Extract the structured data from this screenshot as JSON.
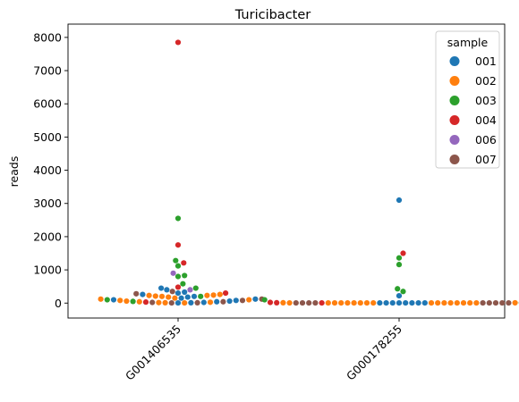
{
  "chart_data": {
    "type": "scatter",
    "subtype": "swarm",
    "title": "Turicibacter",
    "xlabel": "",
    "ylabel": "reads",
    "ylim": [
      -450,
      8400
    ],
    "yticks": [
      0,
      1000,
      2000,
      3000,
      4000,
      5000,
      6000,
      7000,
      8000
    ],
    "categories": [
      "G001406535",
      "G000178255"
    ],
    "legend": {
      "title": "sample",
      "placement": "top-right",
      "entries": [
        {
          "name": "001",
          "color": "#1f77b4"
        },
        {
          "name": "002",
          "color": "#ff7f0e"
        },
        {
          "name": "003",
          "color": "#2ca02c"
        },
        {
          "name": "004",
          "color": "#d62728"
        },
        {
          "name": "006",
          "color": "#9467bd"
        },
        {
          "name": "007",
          "color": "#8c564b"
        }
      ]
    },
    "series": [
      {
        "name": "001",
        "color": "#1f77b4",
        "values": [
          [
            0,
            450
          ],
          [
            0,
            400
          ],
          [
            0,
            330
          ],
          [
            0,
            300
          ],
          [
            0,
            260
          ],
          [
            0,
            200
          ],
          [
            0,
            180
          ],
          [
            0,
            150
          ],
          [
            0,
            120
          ],
          [
            0,
            100
          ],
          [
            0,
            80
          ],
          [
            0,
            60
          ],
          [
            0,
            40
          ],
          [
            0,
            20
          ],
          [
            0,
            10
          ],
          [
            0,
            5
          ],
          [
            1,
            3100
          ],
          [
            1,
            220
          ],
          [
            1,
            5
          ],
          [
            1,
            5
          ],
          [
            1,
            5
          ],
          [
            1,
            5
          ],
          [
            1,
            5
          ],
          [
            1,
            5
          ],
          [
            1,
            5
          ],
          [
            1,
            5
          ]
        ]
      },
      {
        "name": "002",
        "color": "#ff7f0e",
        "values": [
          [
            0,
            260
          ],
          [
            0,
            230
          ],
          [
            0,
            210
          ],
          [
            0,
            200
          ],
          [
            0,
            180
          ],
          [
            0,
            150
          ],
          [
            0,
            120
          ],
          [
            0,
            100
          ],
          [
            0,
            80
          ],
          [
            0,
            60
          ],
          [
            0,
            40
          ],
          [
            0,
            25
          ],
          [
            0,
            15
          ],
          [
            0,
            10
          ],
          [
            0,
            5
          ],
          [
            0,
            240
          ],
          [
            0,
            230
          ],
          [
            1,
            10
          ],
          [
            1,
            8
          ],
          [
            1,
            6
          ],
          [
            1,
            5
          ],
          [
            1,
            5
          ],
          [
            1,
            5
          ],
          [
            1,
            5
          ],
          [
            1,
            5
          ],
          [
            1,
            5
          ],
          [
            1,
            5
          ],
          [
            1,
            5
          ],
          [
            1,
            5
          ],
          [
            1,
            5
          ],
          [
            1,
            5
          ],
          [
            1,
            5
          ],
          [
            1,
            5
          ],
          [
            1,
            5
          ],
          [
            1,
            5
          ],
          [
            1,
            5
          ]
        ]
      },
      {
        "name": "003",
        "color": "#2ca02c",
        "values": [
          [
            0,
            2550
          ],
          [
            0,
            1280
          ],
          [
            0,
            1120
          ],
          [
            0,
            830
          ],
          [
            0,
            800
          ],
          [
            0,
            580
          ],
          [
            0,
            450
          ],
          [
            0,
            200
          ],
          [
            0,
            100
          ],
          [
            0,
            50
          ],
          [
            1,
            1360
          ],
          [
            1,
            1160
          ],
          [
            1,
            430
          ],
          [
            1,
            350
          ],
          [
            1,
            100
          ],
          [
            1,
            60
          ],
          [
            1,
            20
          ],
          [
            1,
            10
          ]
        ]
      },
      {
        "name": "004",
        "color": "#d62728",
        "values": [
          [
            0,
            7850
          ],
          [
            0,
            1750
          ],
          [
            0,
            1210
          ],
          [
            0,
            480
          ],
          [
            0,
            300
          ],
          [
            0,
            30
          ],
          [
            1,
            1500
          ],
          [
            1,
            20
          ],
          [
            1,
            10
          ],
          [
            1,
            5
          ]
        ]
      },
      {
        "name": "006",
        "color": "#9467bd",
        "values": [
          [
            0,
            900
          ],
          [
            0,
            400
          ]
        ]
      },
      {
        "name": "007",
        "color": "#8c564b",
        "values": [
          [
            0,
            350
          ],
          [
            0,
            280
          ],
          [
            0,
            120
          ],
          [
            0,
            80
          ],
          [
            0,
            40
          ],
          [
            0,
            20
          ],
          [
            0,
            10
          ],
          [
            0,
            5
          ],
          [
            1,
            5
          ],
          [
            1,
            5
          ],
          [
            1,
            5
          ],
          [
            1,
            5
          ],
          [
            1,
            5
          ],
          [
            1,
            5
          ],
          [
            1,
            5
          ],
          [
            1,
            5
          ],
          [
            1,
            5
          ]
        ]
      }
    ],
    "grid": false
  }
}
